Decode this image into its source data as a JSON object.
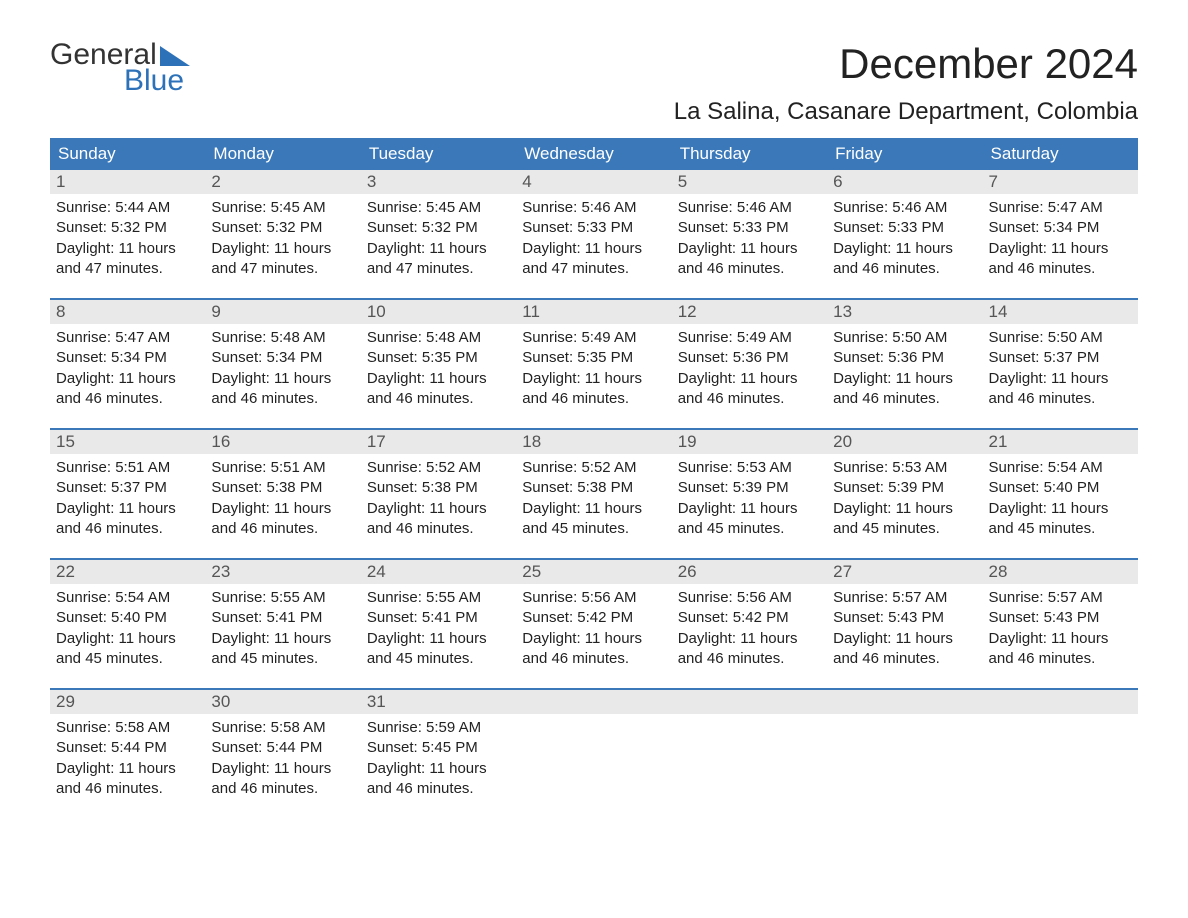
{
  "logo": {
    "word1": "General",
    "word2": "Blue"
  },
  "title": "December 2024",
  "location": "La Salina, Casanare Department, Colombia",
  "colors": {
    "header_bg": "#3a78b9",
    "header_text": "#ffffff",
    "daynum_bg": "#e9e9e9",
    "daynum_text": "#555555",
    "body_text": "#222222",
    "accent": "#2d72b8",
    "page_bg": "#ffffff"
  },
  "day_names": [
    "Sunday",
    "Monday",
    "Tuesday",
    "Wednesday",
    "Thursday",
    "Friday",
    "Saturday"
  ],
  "weeks": [
    [
      {
        "n": "1",
        "sunrise": "5:44 AM",
        "sunset": "5:32 PM",
        "daylight": "11 hours and 47 minutes."
      },
      {
        "n": "2",
        "sunrise": "5:45 AM",
        "sunset": "5:32 PM",
        "daylight": "11 hours and 47 minutes."
      },
      {
        "n": "3",
        "sunrise": "5:45 AM",
        "sunset": "5:32 PM",
        "daylight": "11 hours and 47 minutes."
      },
      {
        "n": "4",
        "sunrise": "5:46 AM",
        "sunset": "5:33 PM",
        "daylight": "11 hours and 47 minutes."
      },
      {
        "n": "5",
        "sunrise": "5:46 AM",
        "sunset": "5:33 PM",
        "daylight": "11 hours and 46 minutes."
      },
      {
        "n": "6",
        "sunrise": "5:46 AM",
        "sunset": "5:33 PM",
        "daylight": "11 hours and 46 minutes."
      },
      {
        "n": "7",
        "sunrise": "5:47 AM",
        "sunset": "5:34 PM",
        "daylight": "11 hours and 46 minutes."
      }
    ],
    [
      {
        "n": "8",
        "sunrise": "5:47 AM",
        "sunset": "5:34 PM",
        "daylight": "11 hours and 46 minutes."
      },
      {
        "n": "9",
        "sunrise": "5:48 AM",
        "sunset": "5:34 PM",
        "daylight": "11 hours and 46 minutes."
      },
      {
        "n": "10",
        "sunrise": "5:48 AM",
        "sunset": "5:35 PM",
        "daylight": "11 hours and 46 minutes."
      },
      {
        "n": "11",
        "sunrise": "5:49 AM",
        "sunset": "5:35 PM",
        "daylight": "11 hours and 46 minutes."
      },
      {
        "n": "12",
        "sunrise": "5:49 AM",
        "sunset": "5:36 PM",
        "daylight": "11 hours and 46 minutes."
      },
      {
        "n": "13",
        "sunrise": "5:50 AM",
        "sunset": "5:36 PM",
        "daylight": "11 hours and 46 minutes."
      },
      {
        "n": "14",
        "sunrise": "5:50 AM",
        "sunset": "5:37 PM",
        "daylight": "11 hours and 46 minutes."
      }
    ],
    [
      {
        "n": "15",
        "sunrise": "5:51 AM",
        "sunset": "5:37 PM",
        "daylight": "11 hours and 46 minutes."
      },
      {
        "n": "16",
        "sunrise": "5:51 AM",
        "sunset": "5:38 PM",
        "daylight": "11 hours and 46 minutes."
      },
      {
        "n": "17",
        "sunrise": "5:52 AM",
        "sunset": "5:38 PM",
        "daylight": "11 hours and 46 minutes."
      },
      {
        "n": "18",
        "sunrise": "5:52 AM",
        "sunset": "5:38 PM",
        "daylight": "11 hours and 45 minutes."
      },
      {
        "n": "19",
        "sunrise": "5:53 AM",
        "sunset": "5:39 PM",
        "daylight": "11 hours and 45 minutes."
      },
      {
        "n": "20",
        "sunrise": "5:53 AM",
        "sunset": "5:39 PM",
        "daylight": "11 hours and 45 minutes."
      },
      {
        "n": "21",
        "sunrise": "5:54 AM",
        "sunset": "5:40 PM",
        "daylight": "11 hours and 45 minutes."
      }
    ],
    [
      {
        "n": "22",
        "sunrise": "5:54 AM",
        "sunset": "5:40 PM",
        "daylight": "11 hours and 45 minutes."
      },
      {
        "n": "23",
        "sunrise": "5:55 AM",
        "sunset": "5:41 PM",
        "daylight": "11 hours and 45 minutes."
      },
      {
        "n": "24",
        "sunrise": "5:55 AM",
        "sunset": "5:41 PM",
        "daylight": "11 hours and 45 minutes."
      },
      {
        "n": "25",
        "sunrise": "5:56 AM",
        "sunset": "5:42 PM",
        "daylight": "11 hours and 46 minutes."
      },
      {
        "n": "26",
        "sunrise": "5:56 AM",
        "sunset": "5:42 PM",
        "daylight": "11 hours and 46 minutes."
      },
      {
        "n": "27",
        "sunrise": "5:57 AM",
        "sunset": "5:43 PM",
        "daylight": "11 hours and 46 minutes."
      },
      {
        "n": "28",
        "sunrise": "5:57 AM",
        "sunset": "5:43 PM",
        "daylight": "11 hours and 46 minutes."
      }
    ],
    [
      {
        "n": "29",
        "sunrise": "5:58 AM",
        "sunset": "5:44 PM",
        "daylight": "11 hours and 46 minutes."
      },
      {
        "n": "30",
        "sunrise": "5:58 AM",
        "sunset": "5:44 PM",
        "daylight": "11 hours and 46 minutes."
      },
      {
        "n": "31",
        "sunrise": "5:59 AM",
        "sunset": "5:45 PM",
        "daylight": "11 hours and 46 minutes."
      },
      null,
      null,
      null,
      null
    ]
  ],
  "labels": {
    "sunrise": "Sunrise: ",
    "sunset": "Sunset: ",
    "daylight": "Daylight: "
  }
}
